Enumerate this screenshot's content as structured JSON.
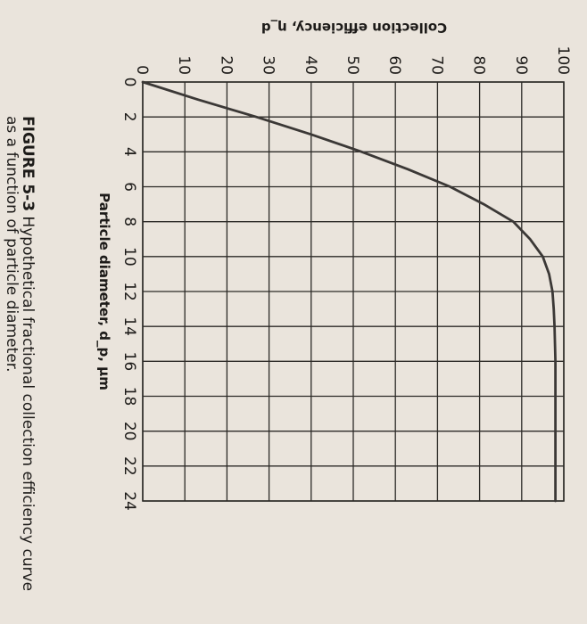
{
  "chart_data": {
    "type": "line",
    "xlabel": "Particle diameter, d_p, μm",
    "ylabel": "Collection efficiency, η_d",
    "xlim": [
      0,
      24
    ],
    "ylim": [
      0,
      100
    ],
    "x_ticks": [
      "0",
      "2",
      "4",
      "6",
      "8",
      "10",
      "12",
      "14",
      "16",
      "18",
      "20",
      "22",
      "24"
    ],
    "y_ticks": [
      "0",
      "10",
      "20",
      "30",
      "40",
      "50",
      "60",
      "70",
      "80",
      "90",
      "100"
    ],
    "grid": true,
    "series": [
      {
        "x": [
          0,
          1,
          2,
          3,
          4,
          5,
          6,
          7,
          8,
          9,
          10,
          11,
          12,
          13,
          14,
          15,
          16,
          18,
          20,
          22,
          24
        ],
        "values": [
          0,
          13,
          27,
          40,
          52,
          63,
          73,
          81,
          88,
          92,
          95,
          96.5,
          97.3,
          97.6,
          97.8,
          97.9,
          98,
          98,
          98,
          98,
          98
        ]
      }
    ]
  },
  "caption": {
    "label": "FIGURE 5-3",
    "line1": " Hypothetical fractional collection efficiency curve",
    "line2": "as a function of particle diameter."
  }
}
